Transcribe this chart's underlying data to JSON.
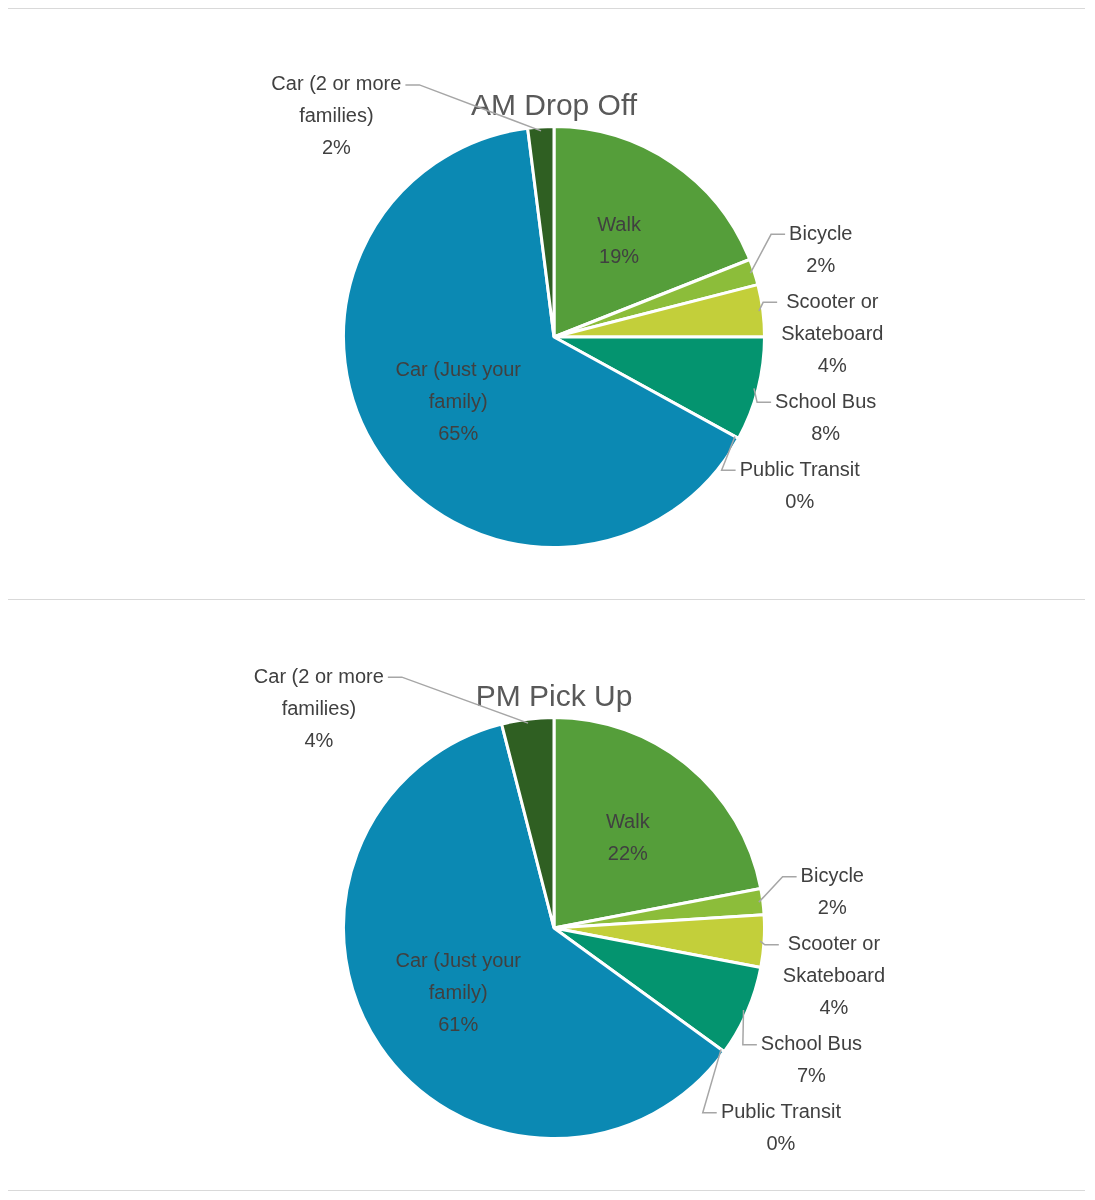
{
  "chart_data": [
    {
      "type": "pie",
      "title": "AM Drop Off",
      "categories": [
        "Walk",
        "Bicycle",
        "Scooter or Skateboard",
        "School Bus",
        "Public Transit",
        "Car (Just your family)",
        "Car (2 or more families)"
      ],
      "values": [
        19,
        2,
        4,
        8,
        0,
        65,
        2
      ],
      "value_labels": [
        "19%",
        "2%",
        "4%",
        "8%",
        "0%",
        "65%",
        "2%"
      ],
      "colors": [
        "#559e3a",
        "#8cbd3a",
        "#c3cf3a",
        "#04946f",
        "#0e8a8a",
        "#0b89b3",
        "#2f5f22"
      ]
    },
    {
      "type": "pie",
      "title": "PM Pick Up",
      "categories": [
        "Walk",
        "Bicycle",
        "Scooter or Skateboard",
        "School Bus",
        "Public Transit",
        "Car (Just your family)",
        "Car (2 or more families)"
      ],
      "values": [
        22,
        2,
        4,
        7,
        0,
        61,
        4
      ],
      "value_labels": [
        "22%",
        "2%",
        "4%",
        "7%",
        "0%",
        "61%",
        "4%"
      ],
      "colors": [
        "#559e3a",
        "#8cbd3a",
        "#c3cf3a",
        "#04946f",
        "#0e8a8a",
        "#0b89b3",
        "#2f5f22"
      ]
    }
  ]
}
